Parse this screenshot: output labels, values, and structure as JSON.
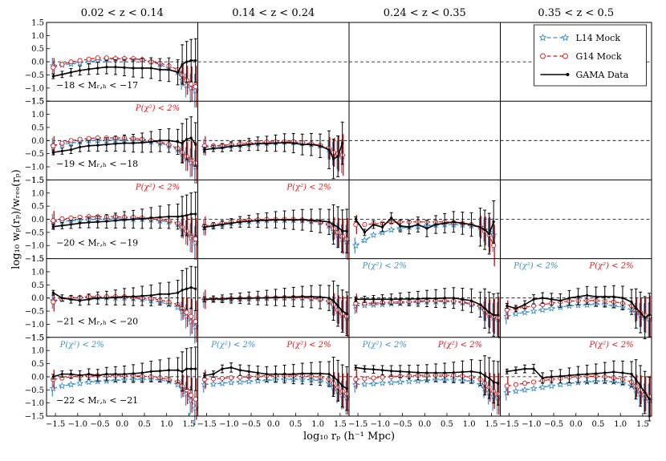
{
  "chart_data": {
    "type": "line",
    "xlabel": "log₁₀ rₚ (h⁻¹ Mpc)",
    "ylabel": "log₁₀ wₚ(rₚ)/wᵣₑₒ(rₚ)",
    "xlim": [
      -1.7,
      1.7
    ],
    "ylim": [
      -1.5,
      1.5
    ],
    "x_ticks": [
      "−1.5",
      "−1.0",
      "−0.5",
      "0.0",
      "0.5",
      "1.0",
      "1.5"
    ],
    "y_ticks": [
      "1.5",
      "1.0",
      "0.5",
      "0.0",
      "−0.5",
      "−1.0",
      "−1.5"
    ],
    "columns": [
      "0.02 < z < 0.14",
      "0.14 < z < 0.24",
      "0.24 < z < 0.35",
      "0.35 < z < 0.5"
    ],
    "rows": [
      "−18 < Mᵣ,ₕ < −17",
      "−19 < Mᵣ,ₕ < −18",
      "−20 < Mᵣ,ₕ < −19",
      "−21 < Mᵣ,ₕ < −20",
      "−22 < Mᵣ,ₕ < −21"
    ],
    "legend": {
      "position": "top-right",
      "entries": [
        "L14 Mock",
        "G14 Mock",
        "GAMA Data"
      ]
    },
    "series_colors": {
      "L14 Mock": "#3a8fc4",
      "G14 Mock": "#e3171b",
      "GAMA Data": "#000000"
    },
    "reference_line": 0.0,
    "x": [
      -1.55,
      -1.35,
      -1.15,
      -0.95,
      -0.75,
      -0.55,
      -0.35,
      -0.15,
      0.05,
      0.25,
      0.45,
      0.65,
      0.85,
      1.05,
      1.25,
      1.35,
      1.45,
      1.55,
      1.65
    ],
    "panels": [
      {
        "row": 0,
        "col": 0,
        "data_xmax": 1.65,
        "prob_text": "",
        "prob_color": "",
        "gama": [
          -0.55,
          -0.48,
          -0.4,
          -0.33,
          -0.28,
          -0.24,
          -0.2,
          -0.2,
          -0.22,
          -0.24,
          -0.24,
          -0.24,
          -0.3,
          -0.3,
          -0.4,
          -0.1,
          0.0,
          0.05,
          0.05
        ],
        "l14": [
          -0.15,
          -0.12,
          -0.08,
          -0.05,
          0.0,
          0.05,
          0.08,
          0.12,
          0.12,
          0.1,
          0.08,
          0.0,
          -0.1,
          -0.25,
          -0.4,
          -0.7,
          -0.9,
          -1.0,
          -1.1
        ],
        "g14": [
          -0.22,
          -0.1,
          0.0,
          0.05,
          0.1,
          0.15,
          0.15,
          0.12,
          0.12,
          0.12,
          0.08,
          0.0,
          -0.05,
          -0.15,
          -0.3,
          -0.5,
          -0.7,
          -0.85,
          -0.95
        ]
      },
      {
        "row": 1,
        "col": 0,
        "data_xmax": 1.65,
        "prob_text": "P(χ²) < 2%",
        "prob_color": "#e3171b",
        "gama": [
          -0.45,
          -0.4,
          -0.35,
          -0.25,
          -0.2,
          -0.18,
          -0.15,
          -0.12,
          -0.1,
          -0.1,
          -0.08,
          -0.05,
          0.0,
          0.0,
          -0.05,
          -0.1,
          0.05,
          0.1,
          -0.15
        ],
        "l14": [
          -0.2,
          -0.15,
          -0.1,
          -0.05,
          0.0,
          0.0,
          0.0,
          0.02,
          0.02,
          0.0,
          0.0,
          -0.05,
          -0.1,
          -0.2,
          -0.35,
          -0.5,
          -0.7,
          -0.85,
          -1.0
        ],
        "g14": [
          -0.2,
          -0.1,
          0.0,
          0.05,
          0.08,
          0.1,
          0.1,
          0.1,
          0.1,
          0.08,
          0.05,
          0.0,
          -0.05,
          -0.15,
          -0.3,
          -0.45,
          -0.6,
          -0.7,
          -0.85
        ]
      },
      {
        "row": 1,
        "col": 1,
        "data_xmax": 1.6,
        "prob_text": "",
        "prob_color": "",
        "gama": [
          -0.35,
          -0.3,
          -0.28,
          -0.22,
          -0.2,
          -0.15,
          -0.12,
          -0.12,
          -0.1,
          -0.08,
          -0.1,
          -0.15,
          -0.15,
          -0.2,
          -0.35,
          -0.7,
          -0.6,
          -0.1,
          -0.1
        ],
        "l14": [
          -0.25,
          -0.25,
          -0.22,
          -0.2,
          -0.18,
          -0.15,
          -0.12,
          -0.1,
          -0.08,
          -0.06,
          -0.08,
          -0.1,
          -0.15,
          -0.2,
          -0.35,
          -0.5,
          -0.55,
          -0.6,
          -0.6
        ],
        "g14": [
          -0.2,
          -0.2,
          -0.18,
          -0.15,
          -0.12,
          -0.1,
          -0.08,
          -0.05,
          -0.05,
          -0.05,
          -0.05,
          -0.08,
          -0.12,
          -0.18,
          -0.3,
          -0.45,
          -0.5,
          -0.55,
          -0.55
        ]
      },
      {
        "row": 2,
        "col": 0,
        "data_xmax": 1.65,
        "prob_text": "P(χ²) < 2%",
        "prob_color": "#e3171b",
        "gama": [
          -0.28,
          -0.24,
          -0.2,
          -0.15,
          -0.12,
          -0.1,
          -0.08,
          -0.05,
          -0.02,
          0.0,
          0.02,
          0.05,
          0.08,
          0.1,
          0.1,
          0.12,
          0.15,
          0.2,
          0.2
        ],
        "l14": [
          -0.1,
          -0.08,
          -0.06,
          -0.04,
          -0.02,
          0.0,
          0.0,
          0.02,
          0.02,
          0.0,
          0.0,
          -0.02,
          -0.06,
          -0.1,
          -0.2,
          -0.35,
          -0.5,
          -0.7,
          -0.9
        ],
        "g14": [
          -0.05,
          0.02,
          0.05,
          0.08,
          0.1,
          0.1,
          0.1,
          0.1,
          0.08,
          0.08,
          0.05,
          0.02,
          0.0,
          -0.05,
          -0.15,
          -0.3,
          -0.45,
          -0.6,
          -0.75
        ]
      },
      {
        "row": 2,
        "col": 1,
        "data_xmax": 1.65,
        "prob_text": "P(χ²) < 2%",
        "prob_color": "#e3171b",
        "gama": [
          -0.3,
          -0.25,
          -0.2,
          -0.15,
          -0.1,
          -0.08,
          -0.05,
          -0.04,
          -0.02,
          -0.02,
          -0.02,
          -0.02,
          -0.04,
          -0.06,
          -0.1,
          -0.2,
          -0.3,
          -0.45,
          -0.45
        ],
        "l14": [
          -0.3,
          -0.25,
          -0.2,
          -0.15,
          -0.1,
          -0.08,
          -0.06,
          -0.04,
          -0.04,
          -0.04,
          -0.04,
          -0.05,
          -0.08,
          -0.12,
          -0.25,
          -0.45,
          -0.6,
          -0.75,
          -0.85
        ],
        "g14": [
          -0.25,
          -0.2,
          -0.15,
          -0.1,
          -0.06,
          -0.03,
          -0.02,
          0.0,
          0.0,
          0.0,
          0.0,
          -0.02,
          -0.05,
          -0.1,
          -0.2,
          -0.35,
          -0.5,
          -0.65,
          -0.75
        ]
      },
      {
        "row": 2,
        "col": 2,
        "data_xmax": 1.6,
        "prob_text": "",
        "prob_color": "",
        "gama": [
          0.0,
          -0.5,
          -0.2,
          -0.3,
          0.05,
          -0.25,
          -0.3,
          -0.2,
          -0.35,
          -0.2,
          -0.15,
          -0.1,
          -0.15,
          -0.2,
          -0.3,
          -0.4,
          -0.55,
          -0.1,
          -0.1
        ],
        "l14": [
          -1.0,
          -0.8,
          -0.6,
          -0.5,
          -0.4,
          -0.35,
          -0.3,
          -0.28,
          -0.25,
          -0.22,
          -0.2,
          -0.2,
          -0.22,
          -0.25,
          -0.3,
          -0.4,
          -0.5,
          -0.6,
          -0.6
        ],
        "g14": [
          -0.2,
          -0.2,
          -0.18,
          -0.15,
          -0.12,
          -0.1,
          -0.1,
          -0.1,
          -0.1,
          -0.1,
          -0.1,
          -0.12,
          -0.15,
          -0.2,
          -0.3,
          -0.45,
          -0.6,
          -1.0,
          -1.0
        ]
      },
      {
        "row": 3,
        "col": 0,
        "data_xmax": 1.65,
        "prob_text": "",
        "prob_color": "",
        "gama": [
          0.2,
          0.0,
          -0.05,
          -0.1,
          -0.05,
          0.0,
          0.0,
          0.02,
          0.05,
          0.05,
          0.08,
          0.1,
          0.15,
          0.15,
          0.2,
          0.3,
          0.35,
          0.4,
          0.35
        ],
        "l14": [
          -0.1,
          -0.05,
          0.0,
          0.0,
          0.02,
          0.02,
          0.02,
          0.0,
          0.0,
          -0.02,
          -0.05,
          -0.1,
          -0.15,
          -0.25,
          -0.35,
          -0.5,
          -0.7,
          -0.9,
          -1.1
        ],
        "g14": [
          -0.15,
          -0.05,
          0.0,
          0.02,
          0.05,
          0.05,
          0.05,
          0.05,
          0.05,
          0.02,
          0.0,
          -0.02,
          -0.08,
          -0.15,
          -0.25,
          -0.4,
          -0.55,
          -0.7,
          -0.9
        ]
      },
      {
        "row": 3,
        "col": 1,
        "data_xmax": 1.65,
        "prob_text": "",
        "prob_color": "",
        "gama": [
          -0.05,
          -0.04,
          -0.03,
          -0.02,
          -0.01,
          0.0,
          0.0,
          0.01,
          0.02,
          0.03,
          0.04,
          0.05,
          0.05,
          0.04,
          0.0,
          -0.1,
          -0.3,
          -0.5,
          -0.6
        ],
        "l14": [
          -0.08,
          -0.07,
          -0.06,
          -0.05,
          -0.04,
          -0.03,
          -0.02,
          -0.01,
          0.0,
          0.0,
          0.0,
          0.0,
          -0.02,
          -0.05,
          -0.15,
          -0.3,
          -0.5,
          -0.65,
          -0.75
        ],
        "g14": [
          -0.05,
          -0.04,
          -0.03,
          -0.02,
          -0.01,
          0.0,
          0.0,
          0.01,
          0.01,
          0.02,
          0.02,
          0.02,
          0.0,
          -0.04,
          -0.12,
          -0.25,
          -0.45,
          -0.6,
          -0.7
        ]
      },
      {
        "row": 3,
        "col": 2,
        "data_xmax": 1.65,
        "prob_text": "P(χ²) < 2%",
        "prob_color": "#3a8fc4",
        "gama": [
          -0.05,
          -0.05,
          -0.05,
          -0.05,
          -0.05,
          -0.04,
          -0.04,
          -0.03,
          -0.02,
          -0.02,
          0.0,
          0.0,
          -0.05,
          -0.1,
          -0.25,
          -0.4,
          -0.55,
          -0.65,
          -0.65
        ],
        "l14": [
          -0.3,
          -0.28,
          -0.26,
          -0.24,
          -0.22,
          -0.2,
          -0.18,
          -0.16,
          -0.14,
          -0.14,
          -0.14,
          -0.15,
          -0.18,
          -0.25,
          -0.35,
          -0.5,
          -0.65,
          -0.75,
          -0.8
        ],
        "g14": [
          -0.2,
          -0.2,
          -0.2,
          -0.18,
          -0.16,
          -0.15,
          -0.14,
          -0.12,
          -0.1,
          -0.1,
          -0.1,
          -0.12,
          -0.15,
          -0.22,
          -0.3,
          -0.45,
          -0.6,
          -0.7,
          -0.75
        ]
      },
      {
        "row": 3,
        "col": 3,
        "data_xmax": 1.7,
        "prob_text": "P(χ²) < 2%",
        "prob_color": "#3a8fc4",
        "gama": [
          -0.3,
          -0.4,
          -0.25,
          -0.05,
          0.0,
          -0.05,
          -0.1,
          0.0,
          0.05,
          0.1,
          0.05,
          0.05,
          0.05,
          0.0,
          -0.15,
          -0.4,
          -0.55,
          -0.75,
          -0.65
        ],
        "l14": [
          -0.7,
          -0.6,
          -0.55,
          -0.5,
          -0.45,
          -0.4,
          -0.35,
          -0.3,
          -0.28,
          -0.26,
          -0.24,
          -0.25,
          -0.3,
          -0.35,
          -0.45,
          -0.55,
          -0.65,
          -0.75,
          -0.8
        ],
        "g14": [
          -0.45,
          -0.4,
          -0.35,
          -0.3,
          -0.25,
          -0.2,
          -0.15,
          -0.12,
          -0.1,
          -0.1,
          -0.1,
          -0.12,
          -0.15,
          -0.2,
          -0.3,
          -0.45,
          -0.55,
          -0.65,
          -0.7
        ]
      },
      {
        "row": 4,
        "col": 0,
        "data_xmax": 1.65,
        "prob_text": "P(χ²) < 2%",
        "prob_color": "#3a8fc4",
        "gama": [
          0.0,
          0.1,
          0.1,
          0.05,
          0.1,
          0.05,
          0.1,
          0.1,
          0.1,
          0.12,
          0.15,
          0.2,
          0.22,
          0.25,
          0.25,
          0.2,
          0.3,
          0.3,
          0.3
        ],
        "l14": [
          -0.45,
          -0.35,
          -0.3,
          -0.25,
          -0.2,
          -0.18,
          -0.16,
          -0.14,
          -0.12,
          -0.1,
          -0.1,
          -0.1,
          -0.12,
          -0.18,
          -0.3,
          -0.45,
          -0.65,
          -0.9,
          -1.2
        ],
        "g14": [
          -0.1,
          -0.05,
          0.0,
          0.02,
          0.04,
          0.05,
          0.05,
          0.05,
          0.05,
          0.04,
          0.02,
          0.0,
          -0.04,
          -0.1,
          -0.2,
          -0.35,
          -0.5,
          -0.7,
          -0.85
        ]
      },
      {
        "row": 4,
        "col": 1,
        "data_xmax": 1.65,
        "prob_text": "P(χ²) < 2%",
        "prob_color": "#3a8fc4",
        "gama": [
          0.05,
          0.1,
          0.3,
          0.35,
          0.25,
          0.2,
          0.15,
          0.1,
          0.1,
          0.1,
          0.1,
          0.12,
          0.12,
          0.12,
          0.1,
          0.0,
          -0.15,
          -0.35,
          -0.45
        ],
        "l14": [
          -0.3,
          -0.28,
          -0.25,
          -0.22,
          -0.2,
          -0.18,
          -0.16,
          -0.14,
          -0.12,
          -0.1,
          -0.1,
          -0.1,
          -0.12,
          -0.15,
          -0.25,
          -0.4,
          -0.55,
          -0.7,
          -0.8
        ],
        "g14": [
          -0.1,
          -0.08,
          -0.06,
          -0.04,
          -0.02,
          0.0,
          0.02,
          0.04,
          0.05,
          0.06,
          0.06,
          0.05,
          0.02,
          -0.02,
          -0.1,
          -0.25,
          -0.4,
          -0.55,
          -0.65
        ]
      },
      {
        "row": 4,
        "col": 2,
        "data_xmax": 1.65,
        "prob_text": "P(χ²) < 2%",
        "prob_color": "#3a8fc4",
        "gama": [
          0.35,
          0.3,
          0.28,
          0.25,
          0.22,
          0.2,
          0.18,
          0.16,
          0.15,
          0.15,
          0.15,
          0.16,
          0.18,
          0.2,
          0.15,
          0.05,
          -0.05,
          -0.2,
          -0.25
        ],
        "l14": [
          -0.3,
          -0.28,
          -0.26,
          -0.24,
          -0.22,
          -0.2,
          -0.18,
          -0.16,
          -0.14,
          -0.12,
          -0.12,
          -0.12,
          -0.14,
          -0.18,
          -0.3,
          -0.45,
          -0.6,
          -0.75,
          -0.8
        ],
        "g14": [
          -0.1,
          -0.08,
          -0.05,
          -0.02,
          0.0,
          0.02,
          0.04,
          0.05,
          0.06,
          0.06,
          0.06,
          0.05,
          0.02,
          -0.02,
          -0.1,
          -0.25,
          -0.4,
          -0.55,
          -0.65
        ]
      },
      {
        "row": 4,
        "col": 3,
        "data_xmax": 1.7,
        "prob_text": "P(χ²) < 2%",
        "prob_color": "#e3171b",
        "gama": [
          0.2,
          0.25,
          0.3,
          0.3,
          -0.05,
          0.0,
          0.02,
          0.05,
          0.08,
          0.1,
          0.12,
          0.15,
          0.18,
          0.15,
          0.1,
          -0.1,
          -0.35,
          -0.6,
          -0.85
        ],
        "l14": [
          -0.6,
          -0.55,
          -0.5,
          -0.45,
          -0.4,
          -0.35,
          -0.3,
          -0.26,
          -0.22,
          -0.2,
          -0.18,
          -0.18,
          -0.2,
          -0.25,
          -0.35,
          -0.5,
          -0.65,
          -0.8,
          -0.9
        ],
        "g14": [
          -0.35,
          -0.3,
          -0.25,
          -0.2,
          -0.15,
          -0.1,
          -0.06,
          -0.02,
          0.0,
          0.02,
          0.02,
          0.0,
          -0.04,
          -0.1,
          -0.2,
          -0.35,
          -0.5,
          -0.65,
          -0.75
        ]
      }
    ]
  }
}
